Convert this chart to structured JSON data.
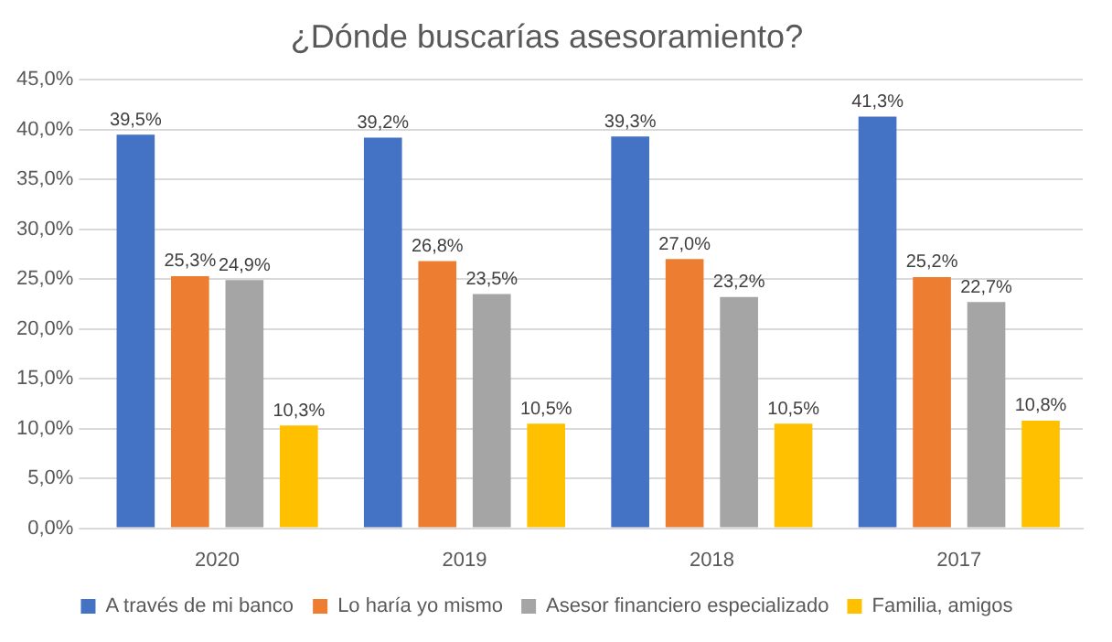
{
  "chart_data": {
    "type": "bar",
    "title": "¿Dónde buscarías asesoramiento?",
    "categories": [
      "2020",
      "2019",
      "2018",
      "2017"
    ],
    "series": [
      {
        "name": "A través de mi banco",
        "color": "#4472c4",
        "values": [
          39.5,
          39.2,
          39.3,
          41.3
        ],
        "value_labels": [
          "39,5%",
          "39,2%",
          "39,3%",
          "41,3%"
        ]
      },
      {
        "name": "Lo haría yo mismo",
        "color": "#ed7d31",
        "values": [
          25.3,
          26.8,
          27.0,
          25.2
        ],
        "value_labels": [
          "25,3%",
          "26,8%",
          "27,0%",
          "25,2%"
        ]
      },
      {
        "name": "Asesor financiero especializado",
        "color": "#a5a5a5",
        "values": [
          24.9,
          23.5,
          23.2,
          22.7
        ],
        "value_labels": [
          "24,9%",
          "23,5%",
          "23,2%",
          "22,7%"
        ]
      },
      {
        "name": "Familia, amigos",
        "color": "#ffc000",
        "values": [
          10.3,
          10.5,
          10.5,
          10.8
        ],
        "value_labels": [
          "10,3%",
          "10,5%",
          "10,5%",
          "10,8%"
        ]
      }
    ],
    "ylim": [
      0,
      45
    ],
    "yticks": [
      {
        "value": 0,
        "label": "0,0%"
      },
      {
        "value": 5,
        "label": "5,0%"
      },
      {
        "value": 10,
        "label": "10,0%"
      },
      {
        "value": 15,
        "label": "15,0%"
      },
      {
        "value": 20,
        "label": "20,0%"
      },
      {
        "value": 25,
        "label": "25,0%"
      },
      {
        "value": 30,
        "label": "30,0%"
      },
      {
        "value": 35,
        "label": "35,0%"
      },
      {
        "value": 40,
        "label": "40,0%"
      },
      {
        "value": 45,
        "label": "45,0%"
      }
    ],
    "grid": "y",
    "legend": "bottom"
  }
}
